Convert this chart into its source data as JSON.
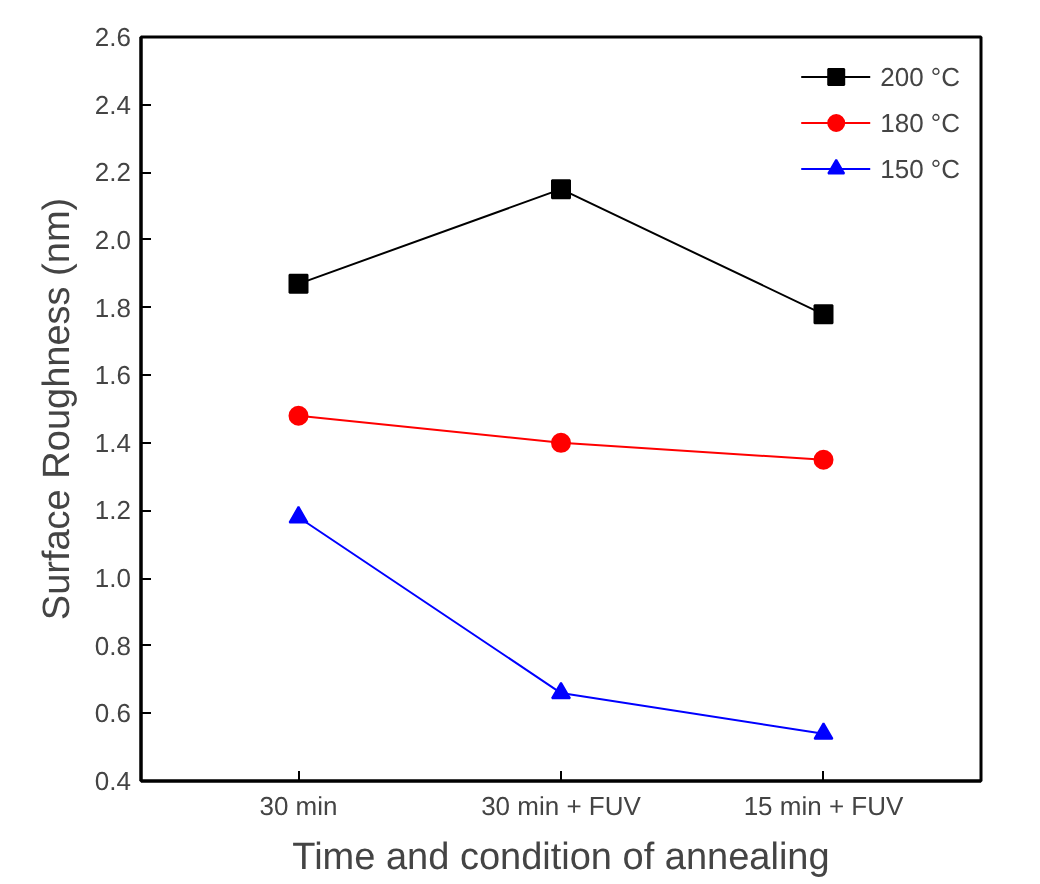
{
  "chart_data": {
    "type": "line",
    "xlabel": "Time and condition of annealing",
    "ylabel": "Surface Roughness (nm)",
    "categories": [
      "30 min",
      "30 min + FUV",
      "15 min + FUV"
    ],
    "ylim": [
      0.4,
      2.6
    ],
    "yticks": [
      0.4,
      0.6,
      0.8,
      {
        "value": 1,
        "label": "1.0"
      },
      1.2,
      1.4,
      1.6,
      1.8,
      {
        "value": 2,
        "label": "2.0"
      },
      2.2,
      2.4,
      2.6
    ],
    "grid": false,
    "legend": "top right",
    "series": [
      {
        "name": "200 °C",
        "color": "#000000",
        "marker": "square",
        "values": [
          1.87,
          2.15,
          1.78
        ]
      },
      {
        "name": "180 °C",
        "color": "#ff0000",
        "marker": "circle",
        "values": [
          1.48,
          1.4,
          1.35
        ]
      },
      {
        "name": "150 °C",
        "color": "#0000ff",
        "marker": "triangle",
        "values": [
          1.18,
          0.66,
          0.54
        ]
      }
    ]
  }
}
